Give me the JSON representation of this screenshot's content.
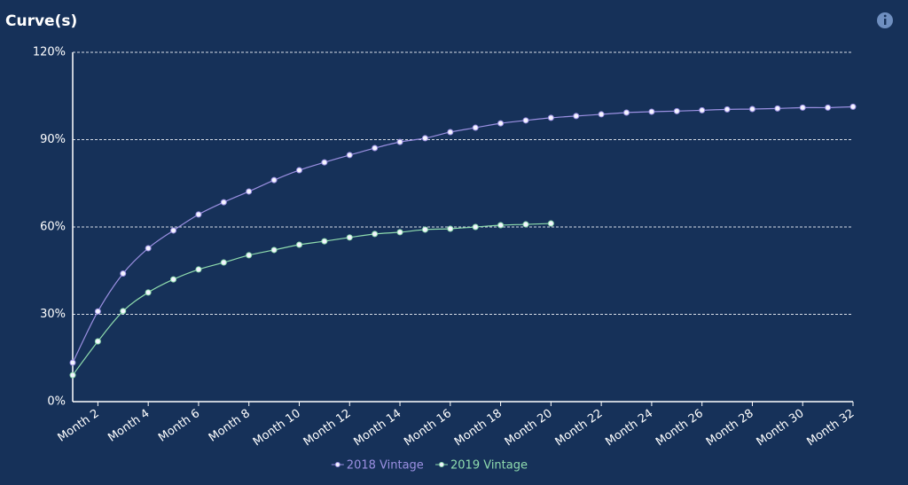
{
  "chart_data": {
    "type": "line",
    "title": "Curve(s)",
    "categories": [
      null,
      "Month 2",
      null,
      "Month 4",
      null,
      "Month 6",
      null,
      "Month 8",
      null,
      "Month 10",
      null,
      "Month 12",
      null,
      "Month 14",
      null,
      "Month 16",
      null,
      "Month 18",
      null,
      "Month 20",
      null,
      "Month 22",
      null,
      "Month 24",
      null,
      "Month 26",
      null,
      "Month 28",
      null,
      "Month 30",
      null,
      "Month 32"
    ],
    "series": [
      {
        "name": "2018 Vintage",
        "color": "#9b90e2",
        "values": [
          13.4,
          31,
          44,
          52.7,
          58.8,
          64.3,
          68.5,
          72.2,
          76.1,
          79.5,
          82.2,
          84.7,
          87.1,
          89.2,
          90.5,
          92.6,
          94.1,
          95.6,
          96.6,
          97.5,
          98.1,
          98.7,
          99.3,
          99.6,
          99.8,
          100.1,
          100.4,
          100.5,
          100.7,
          101,
          101,
          101.3
        ]
      },
      {
        "name": "2019 Vintage",
        "color": "#8fdcae",
        "values": [
          9.1,
          20.7,
          31.1,
          37.5,
          42,
          45.4,
          47.8,
          50.3,
          52.1,
          53.9,
          55.1,
          56.4,
          57.6,
          58.2,
          59.1,
          59.4,
          60,
          60.6,
          60.9,
          61.2,
          null,
          null,
          null,
          null,
          null,
          null,
          null,
          null,
          null,
          null,
          null,
          null
        ]
      }
    ],
    "ylim": [
      0,
      120
    ],
    "yticks": [
      {
        "value": 0,
        "label": "0%"
      },
      {
        "value": 30,
        "label": "30%"
      },
      {
        "value": 60,
        "label": "60%"
      },
      {
        "value": 90,
        "label": "90%"
      },
      {
        "value": 120,
        "label": "120%"
      }
    ],
    "grid": true,
    "legend": "bottom"
  }
}
